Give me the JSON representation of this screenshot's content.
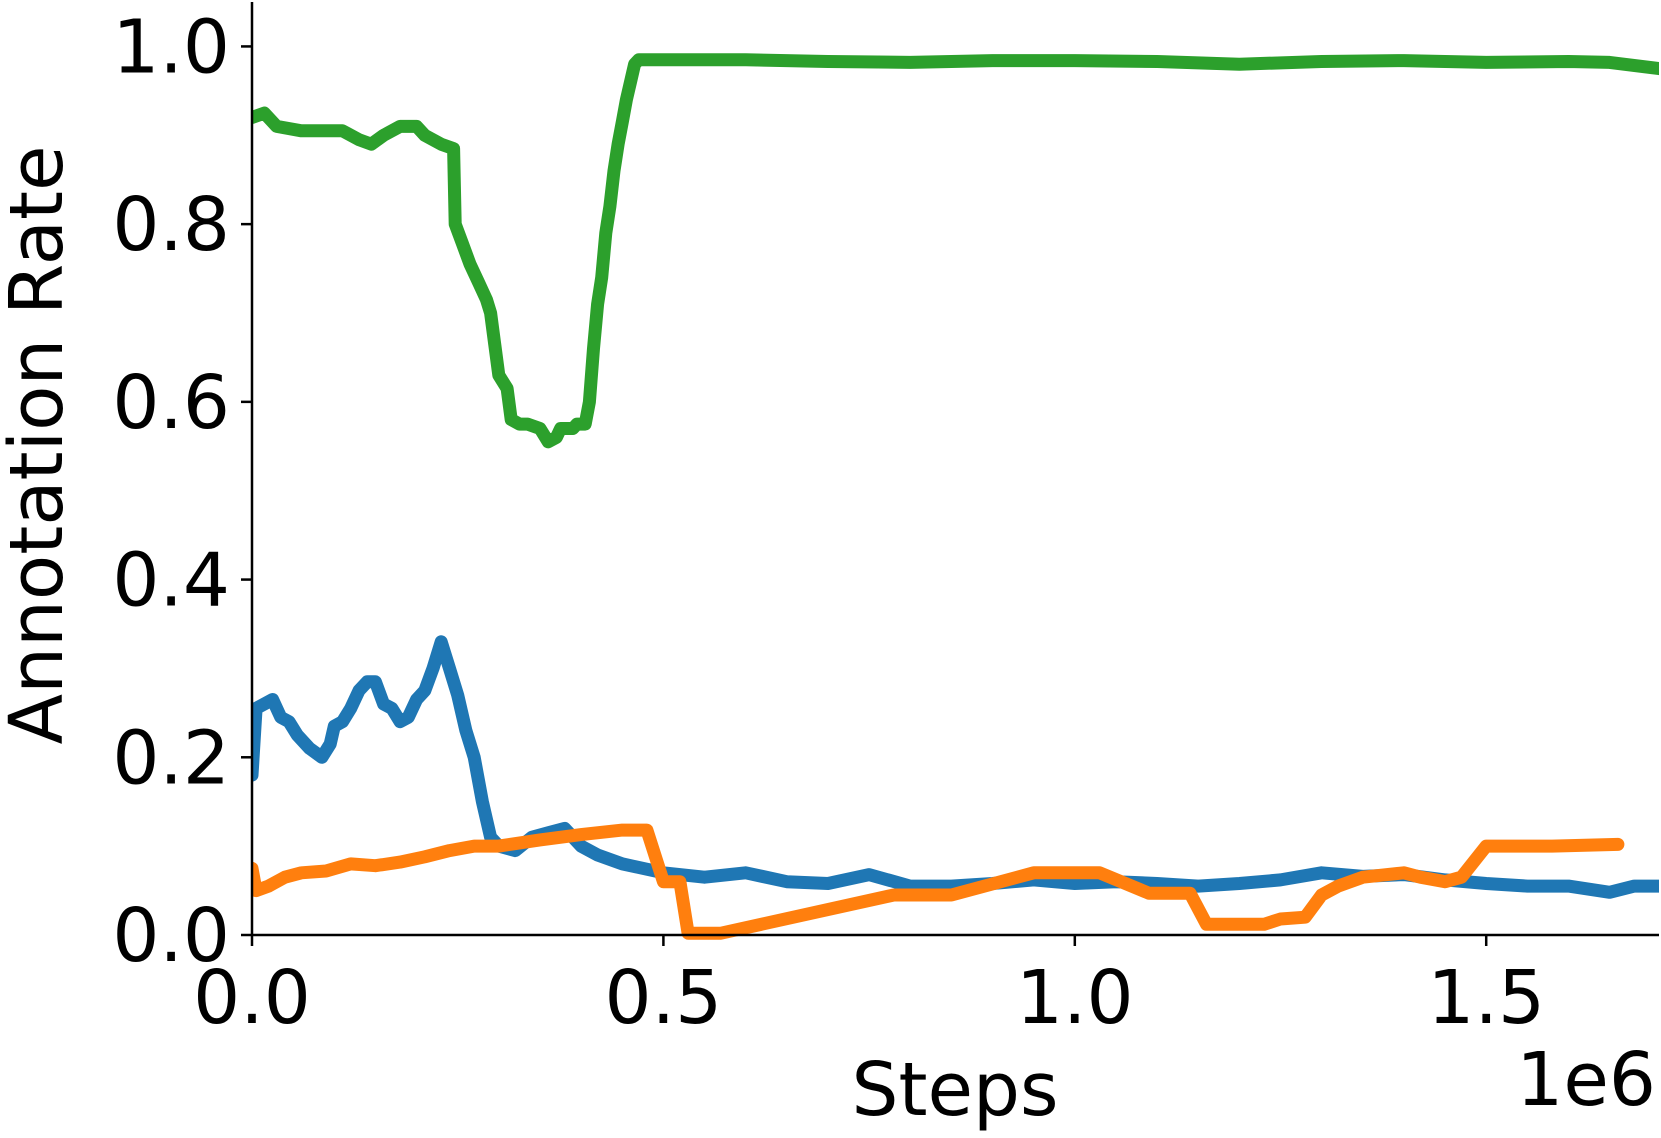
{
  "chart_data": {
    "type": "line",
    "title": "",
    "xlabel": "Steps",
    "ylabel": "Annotation Rate",
    "x_offset_label": "1e6",
    "xlim": [
      0.0,
      1.71
    ],
    "ylim": [
      0.0,
      1.05
    ],
    "xticks": [
      0.0,
      0.5,
      1.0,
      1.5
    ],
    "xtick_labels": [
      "0.0",
      "0.5",
      "1.0",
      "1.5"
    ],
    "yticks": [
      0.0,
      0.2,
      0.4,
      0.6,
      0.8,
      1.0
    ],
    "ytick_labels": [
      "0.0",
      "0.2",
      "0.4",
      "0.6",
      "0.8",
      "1.0"
    ],
    "grid": false,
    "legend": false,
    "series": [
      {
        "color": "#2ca02c",
        "points": [
          [
            0.0,
            0.92
          ],
          [
            0.015,
            0.925
          ],
          [
            0.03,
            0.91
          ],
          [
            0.06,
            0.905
          ],
          [
            0.09,
            0.905
          ],
          [
            0.11,
            0.905
          ],
          [
            0.13,
            0.895
          ],
          [
            0.145,
            0.89
          ],
          [
            0.16,
            0.9
          ],
          [
            0.18,
            0.91
          ],
          [
            0.2,
            0.91
          ],
          [
            0.21,
            0.9
          ],
          [
            0.23,
            0.89
          ],
          [
            0.245,
            0.885
          ],
          [
            0.247,
            0.8
          ],
          [
            0.255,
            0.78
          ],
          [
            0.265,
            0.755
          ],
          [
            0.275,
            0.735
          ],
          [
            0.285,
            0.715
          ],
          [
            0.29,
            0.7
          ],
          [
            0.295,
            0.665
          ],
          [
            0.3,
            0.63
          ],
          [
            0.31,
            0.615
          ],
          [
            0.315,
            0.58
          ],
          [
            0.325,
            0.575
          ],
          [
            0.335,
            0.575
          ],
          [
            0.35,
            0.57
          ],
          [
            0.36,
            0.555
          ],
          [
            0.37,
            0.56
          ],
          [
            0.375,
            0.57
          ],
          [
            0.39,
            0.57
          ],
          [
            0.395,
            0.575
          ],
          [
            0.405,
            0.575
          ],
          [
            0.41,
            0.6
          ],
          [
            0.415,
            0.66
          ],
          [
            0.42,
            0.71
          ],
          [
            0.425,
            0.74
          ],
          [
            0.43,
            0.79
          ],
          [
            0.435,
            0.82
          ],
          [
            0.44,
            0.86
          ],
          [
            0.445,
            0.89
          ],
          [
            0.45,
            0.915
          ],
          [
            0.455,
            0.94
          ],
          [
            0.46,
            0.96
          ],
          [
            0.465,
            0.98
          ],
          [
            0.47,
            0.985
          ],
          [
            0.5,
            0.985
          ],
          [
            0.55,
            0.985
          ],
          [
            0.6,
            0.985
          ],
          [
            0.7,
            0.983
          ],
          [
            0.8,
            0.982
          ],
          [
            0.9,
            0.984
          ],
          [
            1.0,
            0.984
          ],
          [
            1.1,
            0.983
          ],
          [
            1.2,
            0.98
          ],
          [
            1.3,
            0.983
          ],
          [
            1.4,
            0.984
          ],
          [
            1.5,
            0.982
          ],
          [
            1.6,
            0.983
          ],
          [
            1.65,
            0.982
          ],
          [
            1.71,
            0.975
          ]
        ]
      },
      {
        "color": "#1f77b4",
        "points": [
          [
            0.0,
            0.18
          ],
          [
            0.005,
            0.255
          ],
          [
            0.015,
            0.26
          ],
          [
            0.025,
            0.265
          ],
          [
            0.035,
            0.245
          ],
          [
            0.045,
            0.24
          ],
          [
            0.055,
            0.225
          ],
          [
            0.07,
            0.21
          ],
          [
            0.085,
            0.2
          ],
          [
            0.095,
            0.215
          ],
          [
            0.1,
            0.235
          ],
          [
            0.11,
            0.24
          ],
          [
            0.12,
            0.255
          ],
          [
            0.13,
            0.275
          ],
          [
            0.14,
            0.285
          ],
          [
            0.15,
            0.285
          ],
          [
            0.16,
            0.26
          ],
          [
            0.17,
            0.255
          ],
          [
            0.18,
            0.24
          ],
          [
            0.19,
            0.245
          ],
          [
            0.2,
            0.265
          ],
          [
            0.21,
            0.275
          ],
          [
            0.22,
            0.3
          ],
          [
            0.23,
            0.33
          ],
          [
            0.24,
            0.3
          ],
          [
            0.25,
            0.27
          ],
          [
            0.26,
            0.23
          ],
          [
            0.27,
            0.2
          ],
          [
            0.28,
            0.15
          ],
          [
            0.29,
            0.11
          ],
          [
            0.3,
            0.1
          ],
          [
            0.32,
            0.095
          ],
          [
            0.34,
            0.11
          ],
          [
            0.36,
            0.115
          ],
          [
            0.38,
            0.12
          ],
          [
            0.4,
            0.1
          ],
          [
            0.42,
            0.09
          ],
          [
            0.45,
            0.08
          ],
          [
            0.5,
            0.07
          ],
          [
            0.55,
            0.065
          ],
          [
            0.6,
            0.07
          ],
          [
            0.65,
            0.06
          ],
          [
            0.7,
            0.058
          ],
          [
            0.75,
            0.068
          ],
          [
            0.8,
            0.055
          ],
          [
            0.85,
            0.055
          ],
          [
            0.9,
            0.058
          ],
          [
            0.95,
            0.062
          ],
          [
            1.0,
            0.058
          ],
          [
            1.05,
            0.06
          ],
          [
            1.1,
            0.058
          ],
          [
            1.15,
            0.055
          ],
          [
            1.2,
            0.058
          ],
          [
            1.25,
            0.062
          ],
          [
            1.3,
            0.07
          ],
          [
            1.35,
            0.066
          ],
          [
            1.4,
            0.068
          ],
          [
            1.45,
            0.062
          ],
          [
            1.5,
            0.058
          ],
          [
            1.55,
            0.055
          ],
          [
            1.6,
            0.055
          ],
          [
            1.65,
            0.048
          ],
          [
            1.68,
            0.055
          ],
          [
            1.71,
            0.055
          ]
        ]
      },
      {
        "color": "#ff7f0e",
        "points": [
          [
            0.0,
            0.075
          ],
          [
            0.005,
            0.05
          ],
          [
            0.02,
            0.055
          ],
          [
            0.04,
            0.065
          ],
          [
            0.06,
            0.07
          ],
          [
            0.09,
            0.072
          ],
          [
            0.12,
            0.08
          ],
          [
            0.15,
            0.078
          ],
          [
            0.18,
            0.082
          ],
          [
            0.21,
            0.088
          ],
          [
            0.24,
            0.095
          ],
          [
            0.27,
            0.1
          ],
          [
            0.3,
            0.1
          ],
          [
            0.35,
            0.107
          ],
          [
            0.4,
            0.113
          ],
          [
            0.45,
            0.118
          ],
          [
            0.48,
            0.118
          ],
          [
            0.5,
            0.06
          ],
          [
            0.52,
            0.06
          ],
          [
            0.53,
            0.002
          ],
          [
            0.57,
            0.002
          ],
          [
            0.78,
            0.045
          ],
          [
            0.85,
            0.045
          ],
          [
            0.95,
            0.07
          ],
          [
            1.03,
            0.07
          ],
          [
            1.09,
            0.047
          ],
          [
            1.14,
            0.047
          ],
          [
            1.16,
            0.012
          ],
          [
            1.23,
            0.012
          ],
          [
            1.25,
            0.018
          ],
          [
            1.28,
            0.02
          ],
          [
            1.3,
            0.045
          ],
          [
            1.32,
            0.055
          ],
          [
            1.35,
            0.065
          ],
          [
            1.4,
            0.07
          ],
          [
            1.42,
            0.065
          ],
          [
            1.45,
            0.06
          ],
          [
            1.47,
            0.065
          ],
          [
            1.5,
            0.1
          ],
          [
            1.58,
            0.1
          ],
          [
            1.66,
            0.102
          ]
        ]
      }
    ]
  }
}
